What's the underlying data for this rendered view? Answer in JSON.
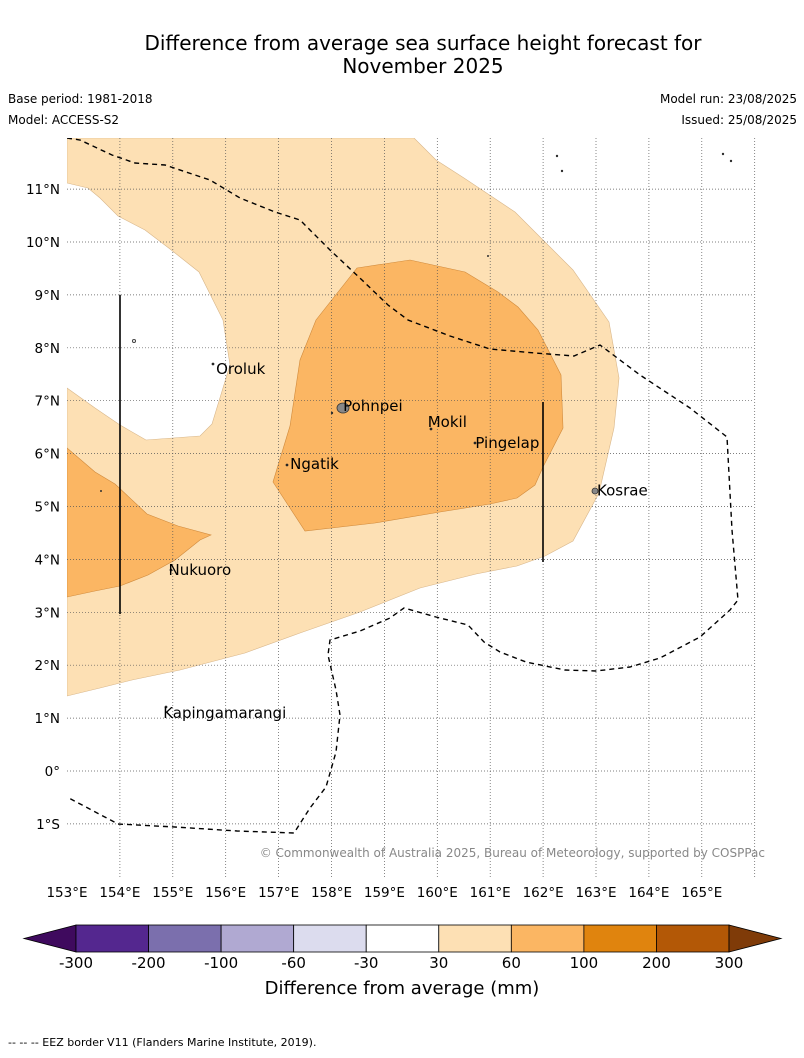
{
  "title_line1": "Difference from average sea surface height forecast for",
  "title_line2": "November 2025",
  "base_period": "Base period: 1981-2018",
  "model": "Model: ACCESS-S2",
  "model_run": "Model run: 23/08/2025",
  "issued": "Issued: 25/08/2025",
  "copyright": "© Commonwealth of Australia 2025, Bureau of Meteorology, supported by COSPPac",
  "lon_labels": [
    "153°E",
    "154°E",
    "155°E",
    "156°E",
    "157°E",
    "158°E",
    "159°E",
    "160°E",
    "161°E",
    "162°E",
    "163°E",
    "164°E",
    "165°E"
  ],
  "lat_labels": [
    "11°N",
    "10°N",
    "9°N",
    "8°N",
    "7°N",
    "6°N",
    "5°N",
    "4°N",
    "3°N",
    "2°N",
    "1°N",
    "0°",
    "1°S"
  ],
  "places": [
    {
      "name": "Oroluk",
      "lon": 155.8,
      "lat": 7.6
    },
    {
      "name": "Pohnpei",
      "lon": 158.2,
      "lat": 6.9
    },
    {
      "name": "Mokil",
      "lon": 159.8,
      "lat": 6.6
    },
    {
      "name": "Pingelap",
      "lon": 160.7,
      "lat": 6.2
    },
    {
      "name": "Ngatik",
      "lon": 157.2,
      "lat": 5.8
    },
    {
      "name": "Kosrae",
      "lon": 163.0,
      "lat": 5.3
    },
    {
      "name": "Nukuoro",
      "lon": 154.9,
      "lat": 3.8
    },
    {
      "name": "Kapingamarangi",
      "lon": 154.8,
      "lat": 1.1
    }
  ],
  "colorbar": {
    "title": "Difference from average (mm)",
    "tick_labels": [
      "-300",
      "-200",
      "-100",
      "-60",
      "-30",
      "30",
      "60",
      "100",
      "200",
      "300"
    ],
    "colors": [
      "#3f0a5e",
      "#54278f",
      "#7b6fad",
      "#b0a9d2",
      "#dcdcee",
      "#ffffff",
      "#fde0b4",
      "#fbb663",
      "#e0840e",
      "#b35806",
      "#7f3b08"
    ]
  },
  "colors": {
    "band_30_60": "#fde0b4",
    "band_60_100": "#fbb663",
    "eez_border": "#000000",
    "grid": "#555555"
  },
  "footnote": "--  --  -- EEZ border V11 (Flanders Marine Institute, 2019)."
}
